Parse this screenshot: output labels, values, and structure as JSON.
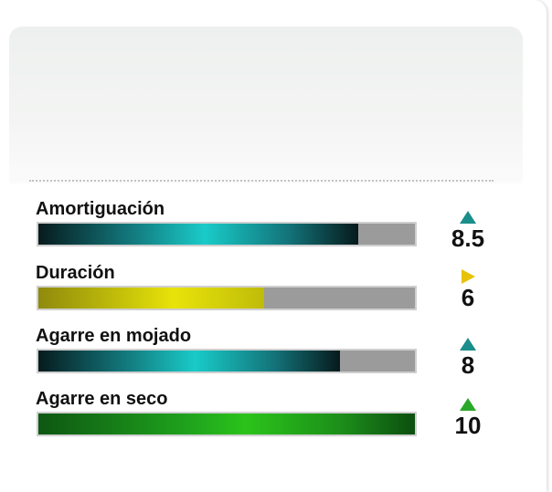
{
  "ratings": [
    {
      "label": "Amortiguación",
      "score": "8.5",
      "fill_fraction": 0.85,
      "fill_style": "teal",
      "trend": "up",
      "trend_color": "#1a8e8a"
    },
    {
      "label": "Duración",
      "score": "6",
      "fill_fraction": 0.6,
      "fill_style": "yellow",
      "trend": "right",
      "trend_color": "#e8c20a"
    },
    {
      "label": "Agarre en mojado",
      "score": "8",
      "fill_fraction": 0.8,
      "fill_style": "teal",
      "trend": "up",
      "trend_color": "#1a8e8a"
    },
    {
      "label": "Agarre en seco",
      "score": "10",
      "fill_fraction": 1.0,
      "fill_style": "green",
      "trend": "up",
      "trend_color": "#2aa82a"
    }
  ]
}
